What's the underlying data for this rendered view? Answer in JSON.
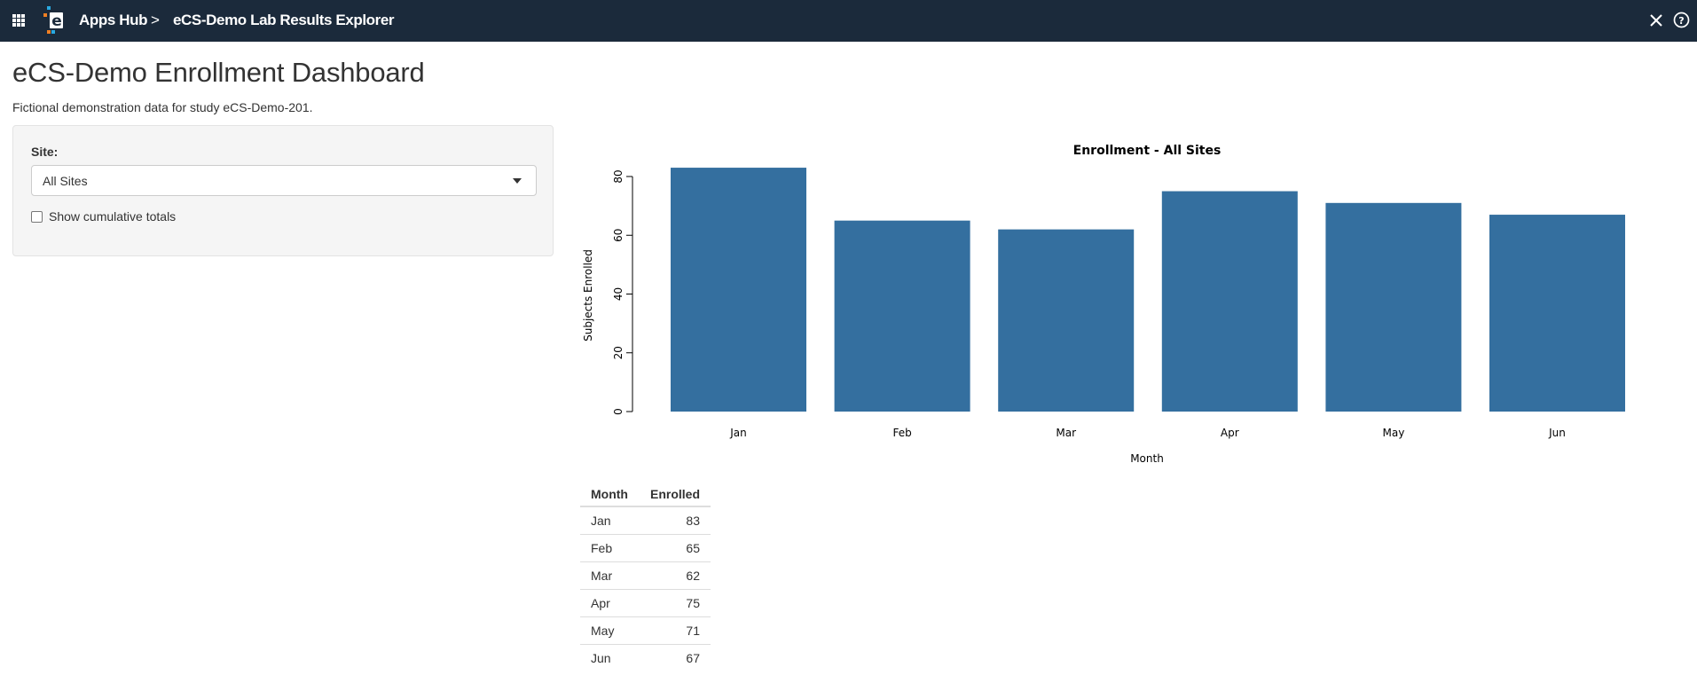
{
  "header": {
    "breadcrumb_root": "Apps Hub",
    "breadcrumb_separator": ">",
    "breadcrumb_current": "eCS-Demo Lab Results Explorer",
    "icons": [
      "apps-grid-icon",
      "app-logo",
      "close-icon",
      "help-icon"
    ]
  },
  "page": {
    "title": "eCS-Demo Enrollment Dashboard",
    "subtitle": "Fictional demonstration data for study eCS-Demo-201."
  },
  "controls": {
    "site_label": "Site:",
    "site_value": "All Sites",
    "cumulative_label": "Show cumulative totals",
    "cumulative_checked": false
  },
  "chart_data": {
    "type": "bar",
    "title": "Enrollment - All Sites",
    "xlabel": "Month",
    "ylabel": "Subjects Enrolled",
    "categories": [
      "Jan",
      "Feb",
      "Mar",
      "Apr",
      "May",
      "Jun"
    ],
    "values": [
      83,
      65,
      62,
      75,
      71,
      67
    ],
    "ylim": [
      0,
      85
    ],
    "yticks": [
      0,
      20,
      40,
      60,
      80
    ],
    "bar_color": "#346f9f",
    "grid": false,
    "legend": "none"
  },
  "table": {
    "headers": [
      "Month",
      "Enrolled"
    ],
    "rows": [
      [
        "Jan",
        "83"
      ],
      [
        "Feb",
        "65"
      ],
      [
        "Mar",
        "62"
      ],
      [
        "Apr",
        "75"
      ],
      [
        "May",
        "71"
      ],
      [
        "Jun",
        "67"
      ]
    ]
  },
  "colors": {
    "header_bg": "#1b2a3b",
    "panel_bg": "#f5f5f5",
    "bar": "#346f9f"
  }
}
